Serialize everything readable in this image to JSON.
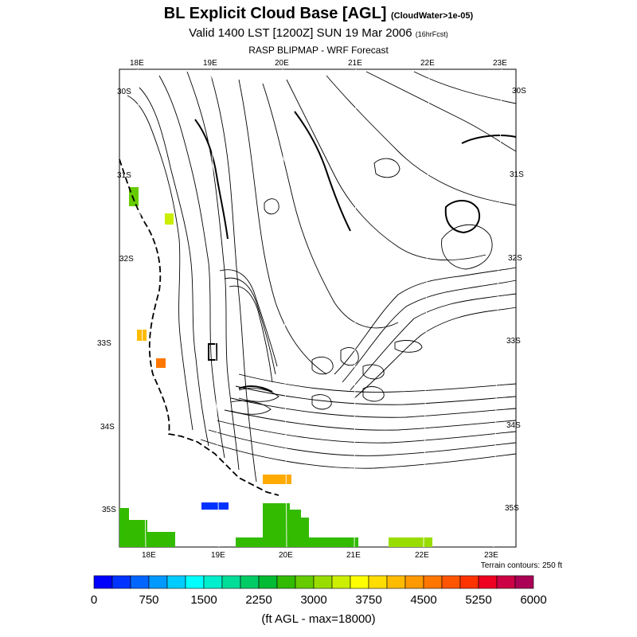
{
  "header": {
    "title": "BL Explicit Cloud Base [AGL]",
    "title_note": "(CloudWater>1e-05)",
    "valid": "Valid 1400 LST [1200Z] SUN 19 Mar 2006",
    "valid_note": "(16hrFcst)",
    "subtitle": "RASP BLIPMAP - WRF Forecast"
  },
  "map": {
    "top_lon_labels": [
      "18E",
      "19E",
      "20E",
      "21E",
      "22E",
      "23E"
    ],
    "bottom_lon_labels": [
      "18E",
      "19E",
      "20E",
      "21E",
      "22E",
      "23E"
    ],
    "left_lat_labels": [
      "30S",
      "31S",
      "32S",
      "33S",
      "34S",
      "35S"
    ],
    "right_lat_labels": [
      "30S",
      "31S",
      "32S",
      "33S",
      "34S",
      "35S"
    ],
    "terrain_note": "Terrain contours: 250 ft"
  },
  "colorbar": {
    "colors": [
      "#0000ff",
      "#0033ff",
      "#0066ff",
      "#0099ff",
      "#00ccff",
      "#00ffff",
      "#00eecc",
      "#00dd99",
      "#00cc66",
      "#00bb33",
      "#33bb00",
      "#66cc00",
      "#99dd00",
      "#ccee00",
      "#ffff00",
      "#ffdd00",
      "#ffbb00",
      "#ff9900",
      "#ff7700",
      "#ff5500",
      "#ff3300",
      "#ee0022",
      "#cc0044",
      "#aa0055"
    ],
    "tick_labels": [
      "0",
      "750",
      "1500",
      "2250",
      "3000",
      "3750",
      "4500",
      "5250",
      "6000"
    ],
    "units_label": "(ft AGL - max=18000)"
  },
  "cloud_patches": [
    {
      "name": "green-strip-west",
      "color": "#66cc00"
    },
    {
      "name": "yellow-patch-north",
      "color": "#ccee00"
    },
    {
      "name": "orange-patch-west-1",
      "color": "#ffbb00"
    },
    {
      "name": "orange-patch-west-2",
      "color": "#ff7700"
    },
    {
      "name": "orange-patch-south",
      "color": "#ffaa00"
    },
    {
      "name": "blue-patch-south",
      "color": "#0033ff"
    },
    {
      "name": "green-region-southwest",
      "color": "#33bb00"
    },
    {
      "name": "green-region-south",
      "color": "#33bb00"
    },
    {
      "name": "yellowgreen-region-southeast",
      "color": "#99dd00"
    }
  ]
}
